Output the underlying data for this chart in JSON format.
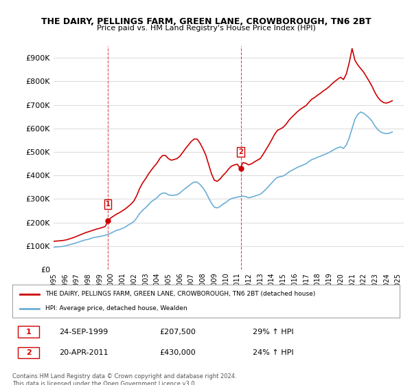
{
  "title": "THE DAIRY, PELLINGS FARM, GREEN LANE, CROWBOROUGH, TN6 2BT",
  "subtitle": "Price paid vs. HM Land Registry's House Price Index (HPI)",
  "ylabel": "",
  "ylim": [
    0,
    950000
  ],
  "yticks": [
    0,
    100000,
    200000,
    300000,
    400000,
    500000,
    600000,
    700000,
    800000,
    900000
  ],
  "ytick_labels": [
    "£0",
    "£100K",
    "£200K",
    "£300K",
    "£400K",
    "£500K",
    "£600K",
    "£700K",
    "£800K",
    "£900K"
  ],
  "xlim_start": 1995.0,
  "xlim_end": 2025.5,
  "background_color": "#ffffff",
  "grid_color": "#dddddd",
  "hpi_color": "#6baed6",
  "price_color": "#cc0000",
  "sale1_x": 1999.73,
  "sale1_y": 207500,
  "sale1_label": "1",
  "sale1_date": "24-SEP-1999",
  "sale1_price": "£207,500",
  "sale1_hpi": "29% ↑ HPI",
  "sale2_x": 2011.3,
  "sale2_y": 430000,
  "sale2_label": "2",
  "sale2_date": "20-APR-2011",
  "sale2_price": "£430,000",
  "sale2_hpi": "24% ↑ HPI",
  "legend_house": "THE DAIRY, PELLINGS FARM, GREEN LANE, CROWBOROUGH, TN6 2BT (detached house)",
  "legend_hpi": "HPI: Average price, detached house, Wealden",
  "footnote": "Contains HM Land Registry data © Crown copyright and database right 2024.\nThis data is licensed under the Open Government Licence v3.0.",
  "hpi_data_x": [
    1995.0,
    1995.25,
    1995.5,
    1995.75,
    1996.0,
    1996.25,
    1996.5,
    1996.75,
    1997.0,
    1997.25,
    1997.5,
    1997.75,
    1998.0,
    1998.25,
    1998.5,
    1998.75,
    1999.0,
    1999.25,
    1999.5,
    1999.75,
    2000.0,
    2000.25,
    2000.5,
    2000.75,
    2001.0,
    2001.25,
    2001.5,
    2001.75,
    2002.0,
    2002.25,
    2002.5,
    2002.75,
    2003.0,
    2003.25,
    2003.5,
    2003.75,
    2004.0,
    2004.25,
    2004.5,
    2004.75,
    2005.0,
    2005.25,
    2005.5,
    2005.75,
    2006.0,
    2006.25,
    2006.5,
    2006.75,
    2007.0,
    2007.25,
    2007.5,
    2007.75,
    2008.0,
    2008.25,
    2008.5,
    2008.75,
    2009.0,
    2009.25,
    2009.5,
    2009.75,
    2010.0,
    2010.25,
    2010.5,
    2010.75,
    2011.0,
    2011.25,
    2011.5,
    2011.75,
    2012.0,
    2012.25,
    2012.5,
    2012.75,
    2013.0,
    2013.25,
    2013.5,
    2013.75,
    2014.0,
    2014.25,
    2014.5,
    2014.75,
    2015.0,
    2015.25,
    2015.5,
    2015.75,
    2016.0,
    2016.25,
    2016.5,
    2016.75,
    2017.0,
    2017.25,
    2017.5,
    2017.75,
    2018.0,
    2018.25,
    2018.5,
    2018.75,
    2019.0,
    2019.25,
    2019.5,
    2019.75,
    2020.0,
    2020.25,
    2020.5,
    2020.75,
    2021.0,
    2021.25,
    2021.5,
    2021.75,
    2022.0,
    2022.25,
    2022.5,
    2022.75,
    2023.0,
    2023.25,
    2023.5,
    2023.75,
    2024.0,
    2024.25,
    2024.5
  ],
  "hpi_data_y": [
    95000,
    96000,
    97000,
    98000,
    100000,
    103000,
    107000,
    110000,
    114000,
    118000,
    122000,
    126000,
    128000,
    132000,
    136000,
    138000,
    140000,
    143000,
    146000,
    149000,
    155000,
    161000,
    167000,
    170000,
    175000,
    181000,
    189000,
    196000,
    204000,
    220000,
    238000,
    252000,
    262000,
    275000,
    288000,
    296000,
    305000,
    318000,
    325000,
    325000,
    318000,
    315000,
    316000,
    318000,
    325000,
    336000,
    346000,
    355000,
    365000,
    372000,
    372000,
    362000,
    348000,
    330000,
    305000,
    282000,
    265000,
    262000,
    268000,
    278000,
    285000,
    295000,
    302000,
    305000,
    308000,
    310000,
    312000,
    310000,
    305000,
    308000,
    312000,
    316000,
    320000,
    330000,
    342000,
    355000,
    368000,
    382000,
    392000,
    395000,
    398000,
    405000,
    415000,
    422000,
    428000,
    435000,
    440000,
    445000,
    450000,
    460000,
    468000,
    472000,
    478000,
    482000,
    488000,
    492000,
    498000,
    505000,
    512000,
    518000,
    522000,
    515000,
    530000,
    560000,
    600000,
    640000,
    660000,
    670000,
    665000,
    655000,
    645000,
    630000,
    610000,
    595000,
    585000,
    580000,
    578000,
    580000,
    585000
  ],
  "price_data_x": [
    1995.0,
    1995.25,
    1995.5,
    1995.75,
    1996.0,
    1996.25,
    1996.5,
    1996.75,
    1997.0,
    1997.25,
    1997.5,
    1997.75,
    1998.0,
    1998.25,
    1998.5,
    1998.75,
    1999.0,
    1999.25,
    1999.5,
    1999.75,
    2000.0,
    2000.25,
    2000.5,
    2000.75,
    2001.0,
    2001.25,
    2001.5,
    2001.75,
    2002.0,
    2002.25,
    2002.5,
    2002.75,
    2003.0,
    2003.25,
    2003.5,
    2003.75,
    2004.0,
    2004.25,
    2004.5,
    2004.75,
    2005.0,
    2005.25,
    2005.5,
    2005.75,
    2006.0,
    2006.25,
    2006.5,
    2006.75,
    2007.0,
    2007.25,
    2007.5,
    2007.75,
    2008.0,
    2008.25,
    2008.5,
    2008.75,
    2009.0,
    2009.25,
    2009.5,
    2009.75,
    2010.0,
    2010.25,
    2010.5,
    2010.75,
    2011.0,
    2011.25,
    2011.5,
    2011.75,
    2012.0,
    2012.25,
    2012.5,
    2012.75,
    2013.0,
    2013.25,
    2013.5,
    2013.75,
    2014.0,
    2014.25,
    2014.5,
    2014.75,
    2015.0,
    2015.25,
    2015.5,
    2015.75,
    2016.0,
    2016.25,
    2016.5,
    2016.75,
    2017.0,
    2017.25,
    2017.5,
    2017.75,
    2018.0,
    2018.25,
    2018.5,
    2018.75,
    2019.0,
    2019.25,
    2019.5,
    2019.75,
    2020.0,
    2020.25,
    2020.5,
    2020.75,
    2021.0,
    2021.25,
    2021.5,
    2021.75,
    2022.0,
    2022.25,
    2022.5,
    2022.75,
    2023.0,
    2023.25,
    2023.5,
    2023.75,
    2024.0,
    2024.25,
    2024.5
  ],
  "price_data_y": [
    120000,
    121000,
    122000,
    123000,
    125000,
    128000,
    132000,
    136000,
    141000,
    146000,
    151000,
    156000,
    160000,
    164000,
    168000,
    172000,
    175000,
    179000,
    183000,
    207500,
    220000,
    228000,
    236000,
    242000,
    250000,
    258000,
    268000,
    278000,
    292000,
    315000,
    345000,
    368000,
    385000,
    405000,
    422000,
    438000,
    452000,
    472000,
    485000,
    485000,
    472000,
    465000,
    468000,
    472000,
    482000,
    498000,
    515000,
    530000,
    545000,
    555000,
    555000,
    538000,
    515000,
    488000,
    448000,
    408000,
    380000,
    375000,
    385000,
    400000,
    412000,
    428000,
    440000,
    445000,
    448000,
    430000,
    455000,
    452000,
    445000,
    450000,
    458000,
    465000,
    472000,
    490000,
    510000,
    530000,
    552000,
    575000,
    592000,
    598000,
    605000,
    618000,
    635000,
    648000,
    660000,
    672000,
    682000,
    690000,
    698000,
    712000,
    725000,
    732000,
    742000,
    750000,
    760000,
    768000,
    778000,
    790000,
    800000,
    810000,
    818000,
    808000,
    832000,
    880000,
    940000,
    890000,
    870000,
    855000,
    840000,
    820000,
    800000,
    778000,
    752000,
    732000,
    718000,
    710000,
    708000,
    712000,
    718000
  ]
}
